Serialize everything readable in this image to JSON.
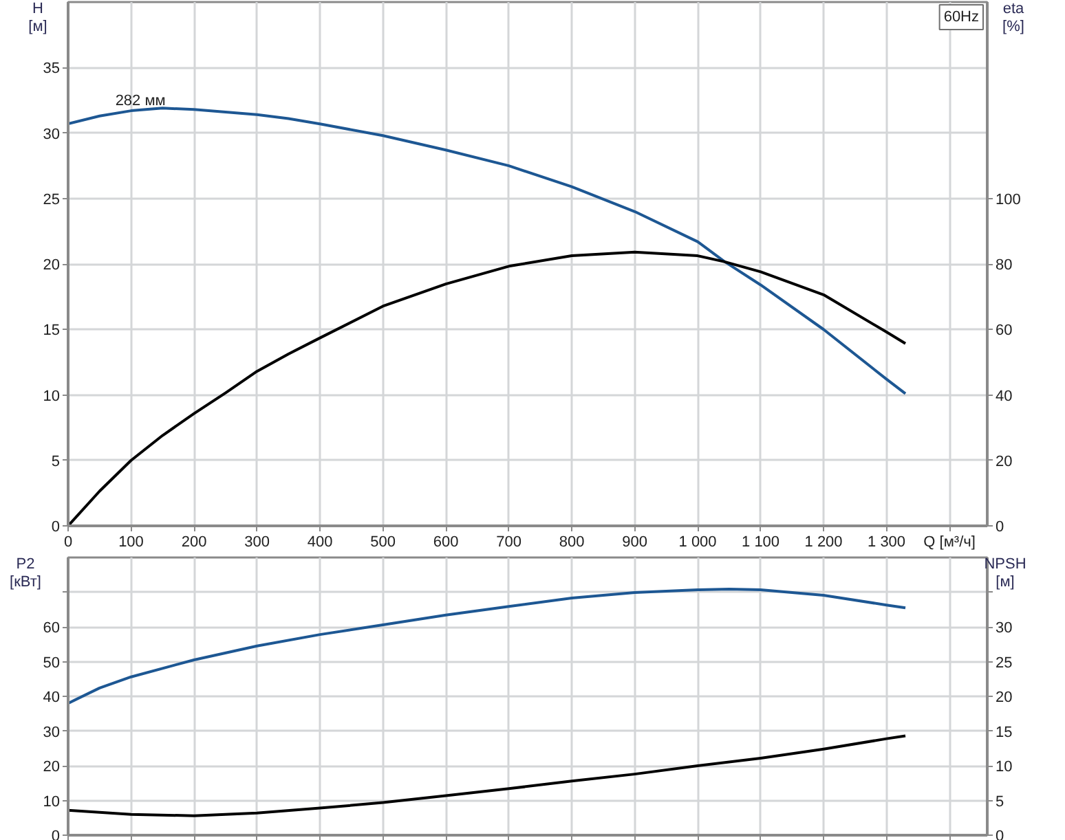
{
  "chart_data": [
    {
      "type": "line",
      "x": [
        0,
        50,
        100,
        150,
        200,
        250,
        300,
        350,
        400,
        500,
        600,
        700,
        800,
        900,
        1000,
        1042,
        1100,
        1200,
        1300,
        1330
      ],
      "series": [
        {
          "color": "#1d5793",
          "values": [
            30.7,
            31.3,
            31.7,
            31.9,
            31.8,
            31.6,
            31.4,
            31.1,
            30.7,
            29.8,
            28.7,
            27.5,
            25.9,
            24.0,
            21.7,
            20.2,
            18.4,
            15.0,
            11.2,
            10.1
          ]
        },
        {
          "color": "#000000",
          "axis": "y2",
          "values": [
            0,
            10.6,
            20,
            27.6,
            34.3,
            40.6,
            47.2,
            52.5,
            57.4,
            67.1,
            73.9,
            79.3,
            82.5,
            83.6,
            82.5,
            80.7,
            77.6,
            70.6,
            59.2,
            55.7
          ]
        }
      ],
      "xlim": [
        0,
        1460
      ],
      "xticks": [
        0,
        100,
        200,
        300,
        400,
        500,
        600,
        700,
        800,
        900,
        {
          "value": 1000,
          "label": "1 000"
        },
        {
          "value": 1100,
          "label": "1 100"
        },
        {
          "value": 1200,
          "label": "1 200"
        },
        {
          "value": 1300,
          "label": "1 300"
        },
        {
          "value": 1400,
          "label": "Q [м³/ч]"
        }
      ],
      "ylim": [
        0,
        40
      ],
      "yticks": [
        0,
        5,
        10,
        15,
        20,
        25,
        30,
        35
      ],
      "y2lim": [
        0,
        160
      ],
      "y2ticks": [
        0,
        20,
        40,
        60,
        80,
        100
      ],
      "ylabel": "H [м]",
      "y2label": "eta [%]",
      "grid": true,
      "annotations": [
        {
          "text": "282 мм",
          "x": 75,
          "y": 31.8
        },
        "60Hz"
      ]
    },
    {
      "type": "line",
      "series": [
        {
          "color": "#1d5793",
          "x": [
            0,
            50,
            100,
            200,
            300,
            400,
            500,
            600,
            700,
            800,
            900,
            1000,
            1050,
            1100,
            1200,
            1300,
            1330
          ],
          "values": [
            38.0,
            42.4,
            45.6,
            50.5,
            54.5,
            57.8,
            60.6,
            63.4,
            65.9,
            68.3,
            69.9,
            70.7,
            70.9,
            70.7,
            69.1,
            66.3,
            65.5
          ]
        },
        {
          "color": "#000000",
          "axis": "y2",
          "x": [
            0,
            100,
            200,
            300,
            400,
            500,
            600,
            700,
            800,
            900,
            1000,
            1100,
            1200,
            1300,
            1330
          ],
          "values": [
            3.6,
            3.0,
            2.8,
            3.2,
            3.9,
            4.7,
            5.7,
            6.7,
            7.8,
            8.8,
            10.0,
            11.1,
            12.4,
            13.9,
            14.3
          ]
        }
      ],
      "xlim": [
        0,
        1460
      ],
      "xticks": [
        0,
        100,
        200,
        300,
        400,
        500,
        600,
        700,
        800,
        900,
        1000,
        1100,
        1200,
        1300,
        1400
      ],
      "ylim": [
        0,
        80
      ],
      "yticks": [
        0,
        10,
        20,
        30,
        40,
        50,
        60,
        {
          "value": 70,
          "label": null
        }
      ],
      "y2lim": [
        0,
        40
      ],
      "y2ticks": [
        0,
        5,
        10,
        15,
        20,
        25,
        30,
        {
          "value": 35,
          "label": null
        }
      ],
      "ylabel": "P2 [кВт]",
      "y2label": "NPSH [м]",
      "grid": true,
      "tick_labels": "y"
    }
  ]
}
